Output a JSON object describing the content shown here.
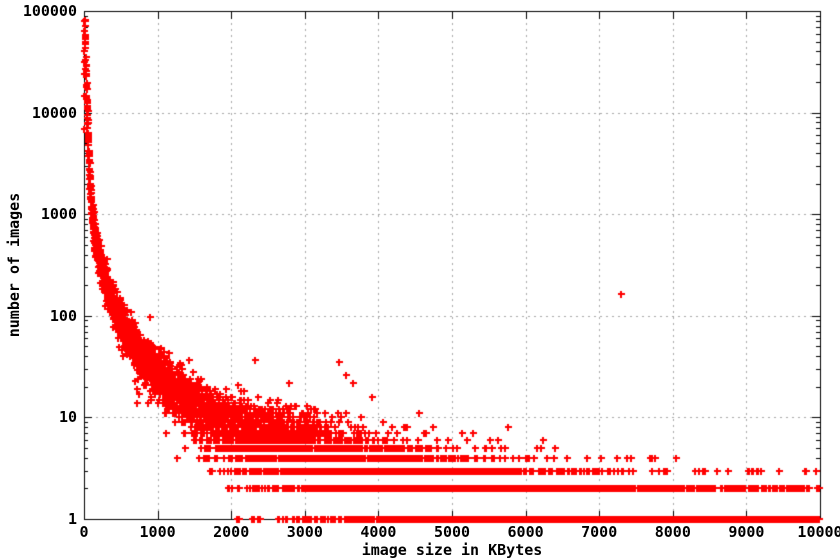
{
  "figure": {
    "background": "#ffffff",
    "border_color": "#000000",
    "text_color": "#000000"
  },
  "axes": {
    "x": {
      "label": "image size in KBytes",
      "scale": "linear",
      "min": 0,
      "max": 10000,
      "ticks": [
        0,
        1000,
        2000,
        3000,
        4000,
        5000,
        6000,
        7000,
        8000,
        9000,
        10000
      ],
      "tick_labels": [
        "0",
        "1000",
        "2000",
        "3000",
        "4000",
        "5000",
        "6000",
        "7000",
        "8000",
        "9000",
        "10000"
      ]
    },
    "y": {
      "label": "number of images",
      "scale": "log",
      "min": 1,
      "max": 100000,
      "ticks": [
        1,
        10,
        100,
        1000,
        10000,
        100000
      ],
      "tick_labels": [
        "1",
        "10",
        "100",
        "1000",
        "10000",
        "100000"
      ]
    }
  },
  "chart_data": {
    "type": "scatter",
    "title": "",
    "xlabel": "image size in KBytes",
    "ylabel": "number of images",
    "legend": "none",
    "grid": true,
    "grid_color": "#a8a8a8",
    "marker": "plus",
    "marker_color": "#ff0000",
    "xlim": [
      0,
      10000
    ],
    "ylim": [
      1,
      100000
    ],
    "counts_are_integers": true,
    "trend": [
      [
        1,
        6000
      ],
      [
        3,
        28000
      ],
      [
        6,
        60000
      ],
      [
        10,
        70000
      ],
      [
        15,
        52000
      ],
      [
        22,
        33000
      ],
      [
        30,
        20000
      ],
      [
        40,
        11500
      ],
      [
        55,
        5800
      ],
      [
        70,
        3000
      ],
      [
        90,
        1400
      ],
      [
        120,
        850
      ],
      [
        160,
        520
      ],
      [
        220,
        330
      ],
      [
        300,
        210
      ],
      [
        400,
        130
      ],
      [
        550,
        72
      ],
      [
        700,
        48
      ],
      [
        850,
        36
      ],
      [
        1000,
        28
      ],
      [
        1200,
        20
      ],
      [
        1500,
        13.5
      ],
      [
        1800,
        9.5
      ],
      [
        2100,
        7.8
      ],
      [
        2500,
        6.3
      ],
      [
        3000,
        5.0
      ],
      [
        3500,
        3.6
      ],
      [
        4000,
        2.6
      ],
      [
        4500,
        2.0
      ],
      [
        5000,
        1.55
      ],
      [
        5500,
        1.2
      ],
      [
        6000,
        0.95
      ],
      [
        6500,
        0.8
      ],
      [
        7000,
        0.66
      ],
      [
        7500,
        0.56
      ],
      [
        8000,
        0.48
      ],
      [
        8500,
        0.42
      ],
      [
        9000,
        0.37
      ],
      [
        9500,
        0.33
      ],
      [
        10000,
        0.3
      ]
    ],
    "outliers": [
      [
        6,
        79000
      ],
      [
        900,
        97
      ],
      [
        1270,
        4
      ],
      [
        1370,
        5
      ],
      [
        1430,
        37
      ],
      [
        2330,
        37
      ],
      [
        2780,
        22
      ],
      [
        3470,
        35
      ],
      [
        3560,
        26
      ],
      [
        3660,
        22
      ],
      [
        3910,
        16
      ],
      [
        4550,
        11
      ],
      [
        5760,
        8
      ],
      [
        6230,
        6
      ],
      [
        7240,
        4
      ],
      [
        7300,
        165
      ],
      [
        7430,
        4
      ],
      [
        7900,
        3
      ],
      [
        9150,
        3
      ],
      [
        9440,
        3
      ]
    ],
    "synthesis": {
      "seed": 1337,
      "x_step_kb": 1,
      "lambda_jitter_sigma": 0.18
    }
  }
}
